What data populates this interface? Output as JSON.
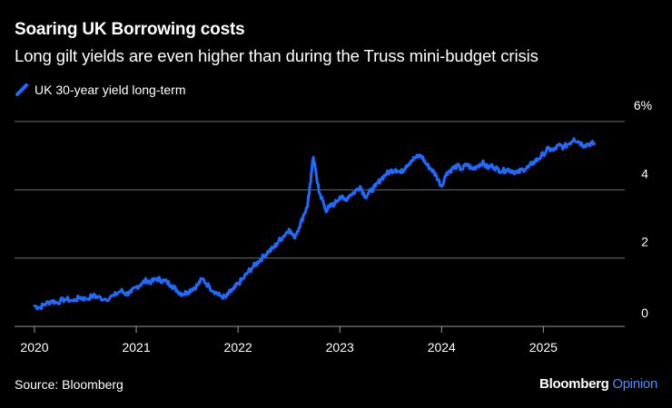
{
  "header": {
    "title": "Soaring UK Borrowing costs",
    "subtitle": "Long gilt yields are even higher than during the Truss mini-budget crisis"
  },
  "legend": {
    "label": "UK 30-year yield long-term",
    "icon": "slash-line-icon"
  },
  "footer": {
    "source": "Source: Bloomberg",
    "brand_primary": "Bloomberg",
    "brand_accent": "Opinion"
  },
  "colors": {
    "background": "#000000",
    "line": "#1f6bff",
    "grid": "#6e6e6e",
    "text": "#ffffff",
    "brand_accent": "#4f8cff"
  },
  "chart_data": {
    "type": "line",
    "title": "Soaring UK Borrowing costs",
    "subtitle": "Long gilt yields are even higher than during the Truss mini-budget crisis",
    "xlabel": "",
    "ylabel": "",
    "ylim": [
      0,
      6
    ],
    "xlim": [
      2020.0,
      2025.8
    ],
    "grid": true,
    "legend_position": "top-left",
    "y_ticks": [
      0,
      2,
      4,
      6
    ],
    "y_tick_labels": [
      "0",
      "2",
      "4",
      "6%"
    ],
    "x_ticks": [
      2020,
      2021,
      2022,
      2023,
      2024,
      2025
    ],
    "x_tick_labels": [
      "2020",
      "2021",
      "2022",
      "2023",
      "2024",
      "2025"
    ],
    "series": [
      {
        "name": "UK 30-year yield long-term",
        "x": [
          2020.0,
          2020.05,
          2020.1,
          2020.17,
          2020.22,
          2020.3,
          2020.38,
          2020.45,
          2020.5,
          2020.58,
          2020.62,
          2020.7,
          2020.78,
          2020.85,
          2020.9,
          2020.95,
          2021.0,
          2021.05,
          2021.1,
          2021.15,
          2021.2,
          2021.25,
          2021.3,
          2021.35,
          2021.4,
          2021.45,
          2021.5,
          2021.55,
          2021.6,
          2021.65,
          2021.72,
          2021.78,
          2021.82,
          2021.88,
          2021.92,
          2021.96,
          2022.0,
          2022.05,
          2022.1,
          2022.15,
          2022.2,
          2022.25,
          2022.3,
          2022.35,
          2022.4,
          2022.45,
          2022.5,
          2022.55,
          2022.6,
          2022.65,
          2022.68,
          2022.7,
          2022.72,
          2022.74,
          2022.76,
          2022.78,
          2022.8,
          2022.83,
          2022.86,
          2022.9,
          2022.95,
          2023.0,
          2023.05,
          2023.1,
          2023.15,
          2023.2,
          2023.25,
          2023.3,
          2023.35,
          2023.4,
          2023.45,
          2023.5,
          2023.55,
          2023.6,
          2023.65,
          2023.7,
          2023.75,
          2023.8,
          2023.85,
          2023.9,
          2023.95,
          2024.0,
          2024.05,
          2024.1,
          2024.15,
          2024.2,
          2024.25,
          2024.3,
          2024.35,
          2024.4,
          2024.45,
          2024.5,
          2024.55,
          2024.6,
          2024.65,
          2024.7,
          2024.75,
          2024.8,
          2024.85,
          2024.9,
          2024.95,
          2025.0,
          2025.05,
          2025.1,
          2025.15,
          2025.2,
          2025.25,
          2025.3,
          2025.35,
          2025.4,
          2025.45,
          2025.5
        ],
        "values": [
          0.6,
          0.55,
          0.65,
          0.75,
          0.7,
          0.8,
          0.75,
          0.85,
          0.8,
          0.9,
          0.85,
          0.8,
          0.9,
          1.05,
          0.95,
          1.0,
          1.15,
          1.25,
          1.35,
          1.3,
          1.4,
          1.35,
          1.3,
          1.2,
          1.05,
          0.95,
          1.0,
          1.1,
          1.2,
          1.4,
          1.15,
          1.0,
          0.9,
          0.85,
          1.0,
          1.1,
          1.25,
          1.4,
          1.6,
          1.75,
          1.9,
          2.05,
          2.2,
          2.3,
          2.5,
          2.65,
          2.85,
          2.6,
          2.9,
          3.3,
          3.5,
          3.9,
          4.5,
          4.95,
          4.6,
          4.2,
          3.9,
          3.7,
          3.4,
          3.5,
          3.6,
          3.8,
          3.7,
          3.85,
          3.95,
          4.1,
          3.8,
          3.95,
          4.1,
          4.3,
          4.45,
          4.55,
          4.6,
          4.5,
          4.7,
          4.85,
          4.95,
          5.0,
          4.75,
          4.6,
          4.4,
          4.1,
          4.5,
          4.6,
          4.7,
          4.6,
          4.75,
          4.6,
          4.7,
          4.8,
          4.65,
          4.7,
          4.6,
          4.55,
          4.6,
          4.55,
          4.5,
          4.6,
          4.65,
          4.8,
          4.9,
          5.05,
          5.2,
          5.15,
          5.3,
          5.25,
          5.35,
          5.5,
          5.4,
          5.3,
          5.35,
          5.35
        ]
      }
    ]
  }
}
